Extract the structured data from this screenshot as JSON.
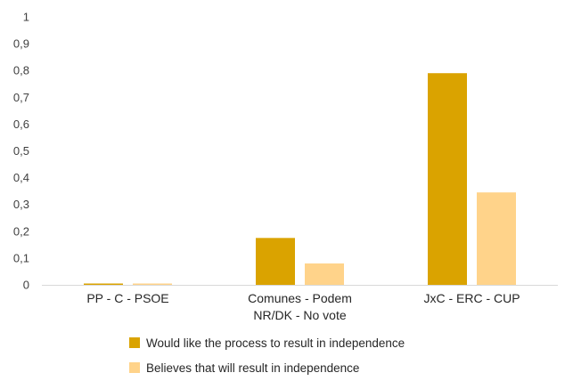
{
  "chart_data": {
    "type": "bar",
    "categories": [
      [
        "PP - C - PSOE"
      ],
      [
        "Comunes - Podem",
        "NR/DK - No vote"
      ],
      [
        "JxC - ERC - CUP"
      ]
    ],
    "series": [
      {
        "name": "Would like the process to result in independence",
        "values": [
          0.005,
          0.175,
          0.79
        ],
        "color": "#DAA300"
      },
      {
        "name": "Believes that will result in independence",
        "values": [
          0.003,
          0.08,
          0.345
        ],
        "color": "#FFD38A"
      }
    ],
    "y_ticks": [
      "0",
      "0,1",
      "0,2",
      "0,3",
      "0,4",
      "0,5",
      "0,6",
      "0,7",
      "0,8",
      "0,9",
      "1"
    ],
    "ylim": [
      0,
      1
    ],
    "grid": false,
    "legend_position": "bottom",
    "title": "",
    "xlabel": "",
    "ylabel": ""
  }
}
